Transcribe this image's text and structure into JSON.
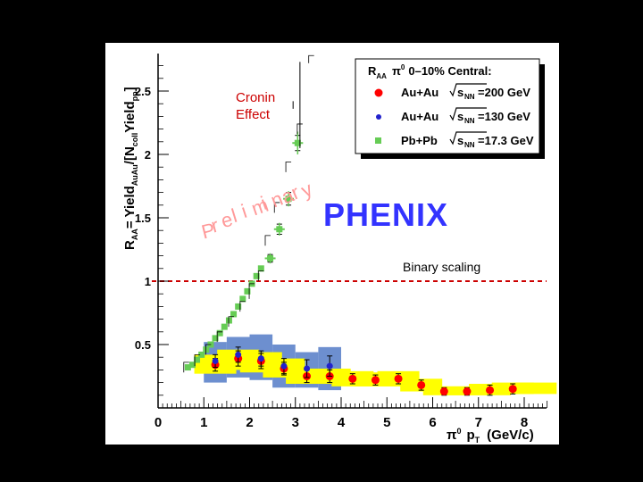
{
  "chart_data": {
    "type": "scatter",
    "title": "",
    "ylabel_main": "R",
    "ylabel_main_sub": "AA",
    "ylabel_rest": "= Yield",
    "ylabel_sub2": "AuAu",
    "ylabel_rest2": "/[N",
    "ylabel_sub3": "coll",
    "ylabel_rest3": "Yield",
    "ylabel_sub4": "pp",
    "ylabel_end": "]",
    "xlabel_pre": "π",
    "xlabel_sup": "0",
    "xlabel_mid": "p",
    "xlabel_sub": "T",
    "xlabel_unit": "(GeV/c)",
    "xlim": [
      0,
      8.5
    ],
    "ylim": [
      0,
      2.8
    ],
    "x_ticks": [
      0,
      1,
      2,
      3,
      4,
      5,
      6,
      7,
      8
    ],
    "y_ticks": [
      0.5,
      1,
      1.5,
      2,
      2.5
    ],
    "y_tick_labels": [
      "0.5",
      "1",
      "1.5",
      "2",
      "2.5"
    ],
    "binary_scaling_y": 1,
    "legend": {
      "position": "top-right",
      "header_r": "R",
      "header_sub": "AA",
      "header_pi": "π",
      "header_sup": "0",
      "header_rest": "0–10% Central:",
      "entries": [
        {
          "system": "Au+Au",
          "energy": "=200 GeV",
          "color": "#ff0000",
          "marker": "circle"
        },
        {
          "system": "Au+Au",
          "energy": "=130 GeV",
          "color": "#2222cc",
          "marker": "circle"
        },
        {
          "system": "Pb+Pb",
          "energy": "=17.3 GeV",
          "color": "#66cc55",
          "marker": "square"
        }
      ],
      "sqrt_s": "s",
      "nn_sub": "NN"
    },
    "series": [
      {
        "name": "Au+Au 200 GeV",
        "color": "#ff0000",
        "marker": "circle",
        "x": [
          1.25,
          1.75,
          2.25,
          2.75,
          3.25,
          3.75,
          4.25,
          4.75,
          5.25,
          5.75,
          6.25,
          6.75,
          7.25,
          7.75
        ],
        "y": [
          0.34,
          0.39,
          0.37,
          0.31,
          0.25,
          0.25,
          0.23,
          0.22,
          0.23,
          0.18,
          0.13,
          0.13,
          0.14,
          0.15
        ],
        "err": [
          0.05,
          0.06,
          0.06,
          0.05,
          0.05,
          0.05,
          0.04,
          0.04,
          0.04,
          0.04,
          0.03,
          0.03,
          0.04,
          0.04
        ]
      },
      {
        "name": "Au+Au 130 GeV",
        "color": "#2222cc",
        "marker": "circle",
        "x": [
          1.25,
          1.75,
          2.25,
          2.75,
          3.25,
          3.75
        ],
        "y": [
          0.37,
          0.42,
          0.39,
          0.33,
          0.31,
          0.33
        ],
        "err": [
          0.05,
          0.06,
          0.06,
          0.06,
          0.07,
          0.08
        ]
      },
      {
        "name": "Pb+Pb 17.3 GeV",
        "color": "#66cc55",
        "marker": "square",
        "x": [
          0.65,
          0.75,
          0.85,
          0.95,
          1.05,
          1.15,
          1.25,
          1.35,
          1.45,
          1.55,
          1.65,
          1.75,
          1.85,
          1.95,
          2.05,
          2.15,
          2.25,
          2.45,
          2.65,
          2.85,
          3.05
        ],
        "y": [
          0.32,
          0.34,
          0.38,
          0.42,
          0.46,
          0.5,
          0.55,
          0.59,
          0.64,
          0.69,
          0.74,
          0.8,
          0.86,
          0.92,
          0.98,
          1.04,
          1.1,
          1.18,
          1.41,
          1.65,
          2.09
        ],
        "err": [
          0,
          0,
          0,
          0,
          0,
          0,
          0,
          0,
          0,
          0,
          0,
          0,
          0,
          0,
          0,
          0,
          0,
          0.03,
          0.04,
          0.05,
          0.06
        ]
      },
      {
        "name": "Pb+Pb 17.3 GeV upper",
        "color": "#66cc55",
        "marker": "cross",
        "x": [
          2.45,
          2.65,
          2.85,
          3.05
        ],
        "y": [
          1.18,
          1.41,
          1.65,
          2.09
        ],
        "err": [
          0.04,
          0.05,
          0.06,
          0.09
        ]
      }
    ],
    "cronin_points": [
      {
        "x": 3.1,
        "y": 2.39,
        "err": 0.34
      },
      {
        "x": 2.95,
        "y": 2.39,
        "err": 0.03
      }
    ],
    "syst_blue_bands": [
      {
        "x0": 1.0,
        "x1": 1.5,
        "y0": 0.2,
        "y1": 0.52
      },
      {
        "x0": 1.5,
        "x1": 2.0,
        "y0": 0.24,
        "y1": 0.56
      },
      {
        "x0": 2.0,
        "x1": 2.5,
        "y0": 0.22,
        "y1": 0.58
      },
      {
        "x0": 2.5,
        "x1": 3.0,
        "y0": 0.16,
        "y1": 0.5
      },
      {
        "x0": 3.0,
        "x1": 3.5,
        "y0": 0.16,
        "y1": 0.44
      },
      {
        "x0": 3.5,
        "x1": 4.0,
        "y0": 0.14,
        "y1": 0.48
      }
    ],
    "syst_yellow_band": [
      [
        1.0,
        0.27,
        0.42
      ],
      [
        1.5,
        0.3,
        0.46
      ],
      [
        2.0,
        0.28,
        0.44
      ],
      [
        2.5,
        0.24,
        0.39
      ],
      [
        3.0,
        0.19,
        0.31
      ],
      [
        3.5,
        0.19,
        0.31
      ],
      [
        4.0,
        0.17,
        0.29
      ],
      [
        4.5,
        0.17,
        0.28
      ],
      [
        5.0,
        0.17,
        0.29
      ],
      [
        5.5,
        0.13,
        0.23
      ],
      [
        6.0,
        0.1,
        0.17
      ],
      [
        6.5,
        0.1,
        0.17
      ],
      [
        7.0,
        0.1,
        0.19
      ],
      [
        7.5,
        0.11,
        0.2
      ],
      [
        8.0,
        0.11,
        0.2
      ]
    ]
  },
  "annotations": {
    "cronin_line1": "Cronin",
    "cronin_line2": "Effect",
    "preliminary": "Preliminary",
    "phenix": "PHENIX",
    "binary_scaling": "Binary scaling"
  },
  "colors": {
    "plot_bg": "#ffffff",
    "frame_bg": "#000000",
    "cronin_text": "#cc0000",
    "preliminary_text": "#ff9999",
    "phenix_text": "#3333ff",
    "yellow_band": "#ffff00",
    "blue_band": "#6d8fcf",
    "binary_line": "#cc0000"
  }
}
